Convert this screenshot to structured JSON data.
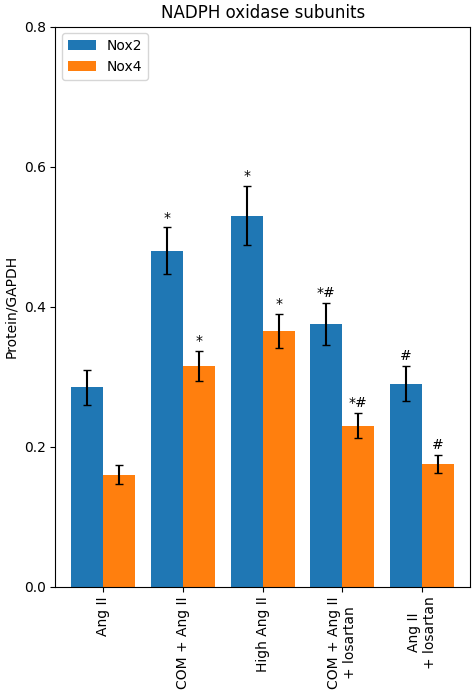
{
  "chart_data": {
    "type": "bar",
    "title": "NADPH oxidase subunits",
    "categories": [
      "Ang II",
      "COM + Ang II",
      "High Ang II",
      "COM + Ang II\n+ losartan",
      "Ang II\n+ losartan"
    ],
    "series": [
      {
        "name": "Nox2",
        "values": [
          0.285,
          0.48,
          0.53,
          0.375,
          0.29
        ],
        "errors": [
          0.025,
          0.033,
          0.042,
          0.03,
          0.025
        ],
        "annotations": [
          null,
          "*",
          "*",
          "*#",
          "#"
        ]
      },
      {
        "name": "Nox4",
        "values": [
          0.16,
          0.315,
          0.365,
          0.23,
          0.175
        ],
        "errors": [
          0.013,
          0.022,
          0.024,
          0.018,
          0.013
        ],
        "annotations": [
          null,
          "*",
          "*",
          "*#",
          "#"
        ]
      }
    ],
    "ylabel": "Protein/GAPDH",
    "ylim": [
      0.0,
      0.8
    ],
    "yticks": [
      {
        "value": 0.0,
        "label": "0.0"
      },
      {
        "value": 0.2,
        "label": "0.2"
      },
      {
        "value": 0.4,
        "label": "0.4"
      },
      {
        "value": 0.6,
        "label": "0.6"
      },
      {
        "value": 0.8,
        "label": "0.8"
      }
    ],
    "legend": "upper left",
    "grid": false
  }
}
